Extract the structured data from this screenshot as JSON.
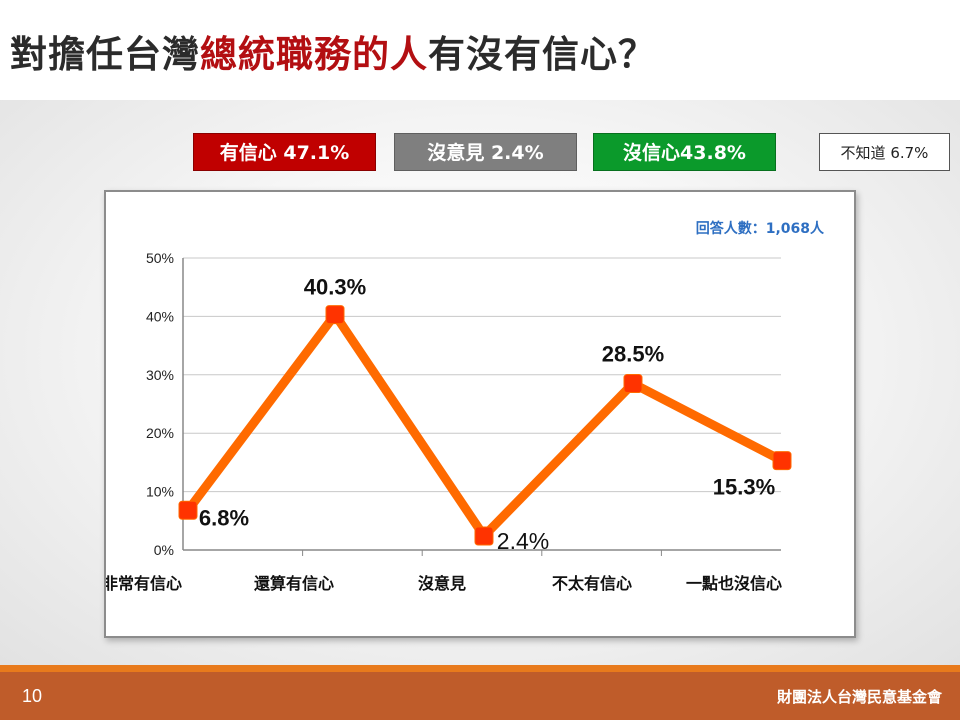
{
  "slide": {
    "title_parts": [
      "對擔任台灣",
      "總統職務的人",
      "有沒有信心？"
    ],
    "page_number": "10",
    "organization": "財團法人台灣民意基金會"
  },
  "summary": {
    "confident": "有信心 47.1%",
    "no_opinion": "沒意見 2.4%",
    "not_confident": "沒信心43.8%",
    "dont_know": "不知道 6.7%"
  },
  "colors": {
    "confident": "#c00000",
    "no_opinion": "#7f7f7f",
    "not_confident": "#0b9a2b",
    "line": "#ff6a00",
    "marker": "#ff3300",
    "title_highlight": "#b30f12",
    "footer": "#bf5c2a"
  },
  "chart_data": {
    "type": "line",
    "annotation": "回答人數：1,068人",
    "categories": [
      "非常有信心",
      "還算有信心",
      "沒意見",
      "不太有信心",
      "一點也沒信心"
    ],
    "values": [
      6.8,
      40.3,
      2.4,
      28.5,
      15.3
    ],
    "data_labels": [
      "6.8%",
      "40.3%",
      "2.4%",
      "28.5%",
      "15.3%"
    ],
    "ylim": [
      0,
      50
    ],
    "yticks": [
      0,
      10,
      20,
      30,
      40,
      50
    ],
    "ytick_labels": [
      "0%",
      "10%",
      "20%",
      "30%",
      "40%",
      "50%"
    ],
    "grid": true,
    "legend": "none"
  }
}
